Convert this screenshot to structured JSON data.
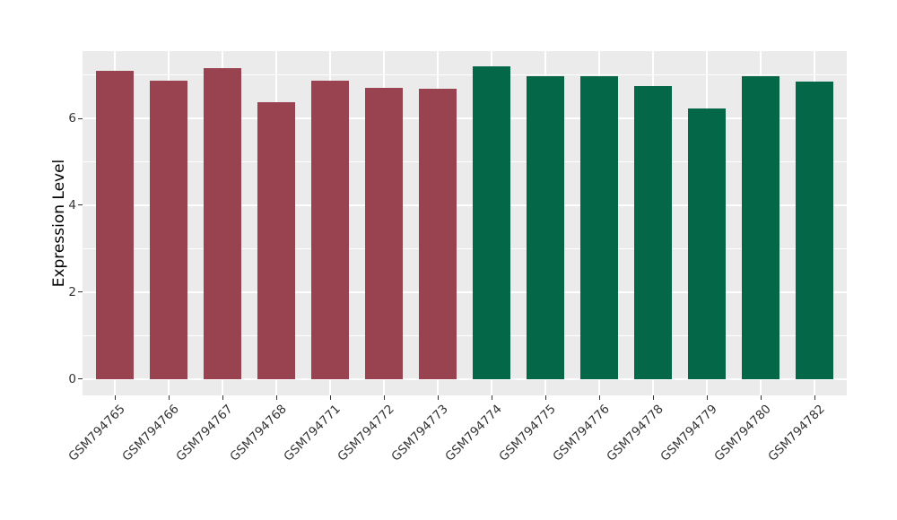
{
  "chart_data": {
    "type": "bar",
    "title": "",
    "xlabel": "",
    "ylabel": "Expression Level",
    "categories": [
      "GSM794765",
      "GSM794766",
      "GSM794767",
      "GSM794768",
      "GSM794771",
      "GSM794772",
      "GSM794773",
      "GSM794774",
      "GSM794775",
      "GSM794776",
      "GSM794778",
      "GSM794779",
      "GSM794780",
      "GSM794782"
    ],
    "values": [
      7.1,
      6.87,
      7.16,
      6.38,
      6.87,
      6.7,
      6.68,
      7.2,
      6.97,
      6.97,
      6.74,
      6.23,
      6.97,
      6.84
    ],
    "colors": [
      "#9A4350",
      "#9A4350",
      "#9A4350",
      "#9A4350",
      "#9A4350",
      "#9A4350",
      "#9A4350",
      "#046747",
      "#046747",
      "#046747",
      "#046747",
      "#046747",
      "#046747",
      "#046747"
    ],
    "ytick_labels": [
      "0",
      "2",
      "4",
      "6"
    ],
    "yticks": [
      0,
      2,
      4,
      6
    ],
    "minor_yticks": [
      1,
      3,
      5,
      7
    ],
    "ylim": [
      0,
      7.55
    ],
    "xtick_angle_deg": 45,
    "legend": "none",
    "grid": "on",
    "panel_background": "#EBEBEB",
    "gridline_color": "#FFFFFF",
    "axis_text_color": "#333333",
    "bar_color_left_group": "#9A4350",
    "bar_color_right_group": "#046747"
  }
}
